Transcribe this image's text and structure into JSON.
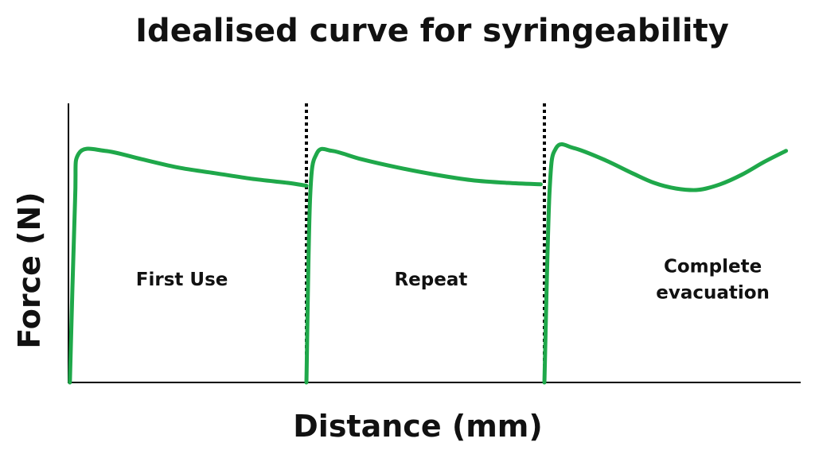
{
  "chart_data": {
    "type": "line",
    "title": "Idealised curve for syringeability",
    "xlabel": "Distance (mm)",
    "ylabel": "Force (N)",
    "axis_ticks": false,
    "grid": false,
    "series_color": "#1fa84a",
    "divider_color": "#000000",
    "xlim": [
      0,
      100
    ],
    "ylim": [
      0,
      100
    ],
    "dividers": [
      32.5,
      65.0
    ],
    "regions": [
      {
        "label": [
          "First Use"
        ],
        "x": 15.5,
        "y": 37
      },
      {
        "label": [
          "Repeat"
        ],
        "x": 49.5,
        "y": 37
      },
      {
        "label": [
          "Complete",
          "evacuation"
        ],
        "x": 88,
        "y": 37
      }
    ],
    "series": [
      {
        "x": [
          0.2,
          0.9,
          1.4,
          5,
          10,
          15,
          20,
          25,
          30,
          32.5
        ],
        "y": [
          0,
          65,
          82,
          83,
          80,
          77,
          75,
          73,
          71.5,
          70.5
        ]
      },
      {
        "x": [
          32.5,
          33.0,
          33.9,
          36,
          40,
          45,
          50,
          55,
          60,
          64.5
        ],
        "y": [
          0,
          66,
          82,
          83,
          80,
          77,
          74.5,
          72.5,
          71.5,
          71
        ]
      },
      {
        "x": [
          65.0,
          65.7,
          66.6,
          69,
          73,
          77,
          80,
          83,
          86,
          89,
          92,
          95,
          98
        ],
        "y": [
          0,
          68,
          84,
          84,
          80,
          75,
          71.5,
          69.5,
          69,
          71,
          74.5,
          79,
          83
        ]
      }
    ]
  }
}
